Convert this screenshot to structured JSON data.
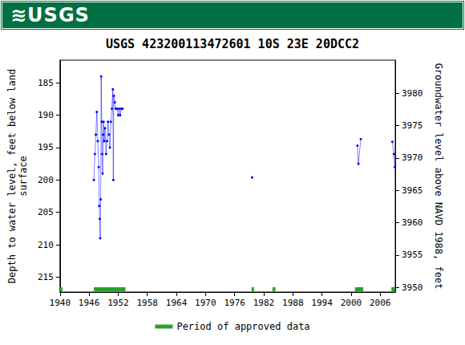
{
  "header": {
    "logo_text": "≋USGS"
  },
  "chart_data": {
    "type": "scatter",
    "title": "USGS 423200113472601 10S 23E 20DCC2",
    "y_label": "Depth to water level, feet below land\nsurface",
    "y2_label": "Groundwater level above NAVD 1988, feet",
    "xlim": [
      1940,
      2009.1
    ],
    "xticks": [
      1940,
      1946,
      1952,
      1958,
      1964,
      1970,
      1976,
      1982,
      1988,
      1994,
      2000,
      2006
    ],
    "ylim": [
      181.5,
      217.3
    ],
    "yticks": [
      185,
      190,
      195,
      200,
      205,
      210,
      215
    ],
    "y_inverted": true,
    "y2lim": [
      3949.3,
      3985.1
    ],
    "y2ticks": [
      3950,
      3955,
      3960,
      3965,
      3970,
      3975,
      3980
    ],
    "grid": false,
    "legend": "bottom",
    "series": [
      {
        "color": "#0000ff",
        "marker": "circle",
        "line_style": "dotted",
        "x": [
          1947.0,
          1947.2,
          1947.4,
          1947.6,
          1947.8,
          1948.0,
          1948.1,
          1948.2,
          1948.3,
          1948.4,
          1948.5,
          1948.6,
          1948.7,
          1948.8,
          1948.9,
          1949.0,
          1949.1,
          1949.3,
          1949.5,
          1949.7,
          1949.9,
          1950.1,
          1950.3,
          1950.5,
          1950.7,
          1950.9,
          1951.0,
          1951.1,
          1951.3,
          1951.5,
          1951.8,
          1952.0,
          1952.2,
          1952.4,
          1952.6,
          1952.9,
          1966,
          1979.6,
          1990,
          2001.3,
          2001.5,
          2002.0,
          2005,
          2008.5,
          2008.8,
          2009.0
        ],
        "values": [
          200,
          196,
          193,
          189.5,
          194,
          198,
          204,
          206,
          209,
          203,
          184,
          191,
          196,
          199,
          193,
          191,
          194,
          192,
          196,
          194,
          191,
          193,
          195,
          191,
          189,
          186,
          200,
          187,
          188,
          189,
          189,
          190,
          189,
          190,
          189,
          189,
          null,
          199.6,
          null,
          194.7,
          197.5,
          193.7,
          null,
          194.1,
          196,
          198
        ]
      }
    ],
    "approved_periods": {
      "name": "Period of approved data",
      "color": "#2ca02c",
      "ranges": [
        [
          1940.0,
          1940.3
        ],
        [
          1947.0,
          1953.5
        ],
        [
          1979.5,
          1980.0
        ],
        [
          1983.8,
          1984.4
        ],
        [
          2000.8,
          2002.5
        ],
        [
          2008.3,
          2009.1
        ]
      ]
    }
  }
}
